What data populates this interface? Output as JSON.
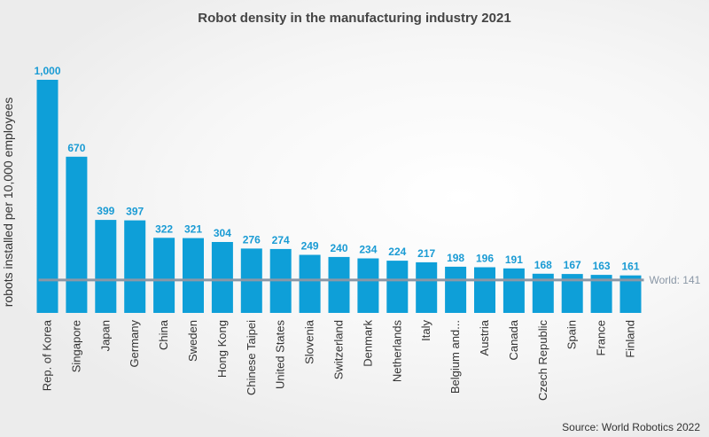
{
  "chart_data": {
    "type": "bar",
    "title": "Robot density in the manufacturing industry 2021",
    "ylabel": "robots installed per 10,000 employees",
    "xlabel": "",
    "ylim": [
      0,
      1000
    ],
    "categories": [
      "Rep. of Korea",
      "Singapore",
      "Japan",
      "Germany",
      "China",
      "Sweden",
      "Hong Kong",
      "Chinese Taipei",
      "United States",
      "Slovenia",
      "Switzerland",
      "Denmark",
      "Netherlands",
      "Italy",
      "Belgium and...",
      "Austria",
      "Canada",
      "Czech Republic",
      "Spain",
      "France",
      "Finland"
    ],
    "values": [
      1000,
      670,
      399,
      397,
      322,
      321,
      304,
      276,
      274,
      249,
      240,
      234,
      224,
      217,
      198,
      196,
      191,
      168,
      167,
      163,
      161
    ],
    "value_labels": [
      "1,000",
      "670",
      "399",
      "397",
      "322",
      "321",
      "304",
      "276",
      "274",
      "249",
      "240",
      "234",
      "224",
      "217",
      "198",
      "196",
      "191",
      "168",
      "167",
      "163",
      "161"
    ],
    "reference_line": {
      "label": "World: 141",
      "value": 141,
      "color": "#8a97a6"
    },
    "bar_color": "#0e9fd8",
    "grid": false,
    "legend": "none",
    "source": "Source: World Robotics 2022"
  }
}
